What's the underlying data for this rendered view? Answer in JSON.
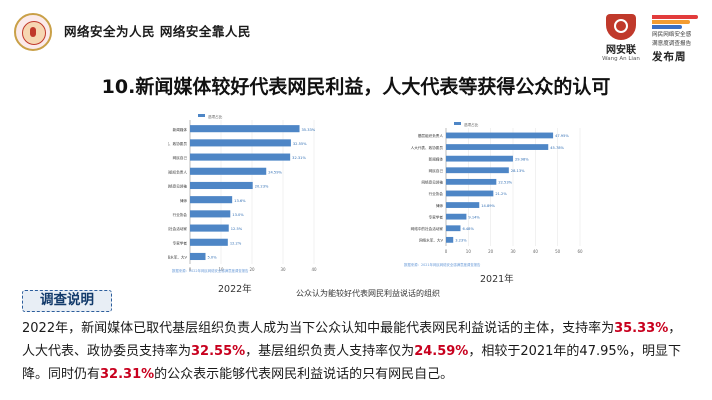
{
  "header": {
    "slogan": "网络安全为人民  网络安全靠人民",
    "brand": {
      "cn": "网安联",
      "en": "Wang An Lian"
    },
    "publisher": {
      "line1": "网民网络安全感",
      "line2": "满意度调查报告",
      "cn": "发布周"
    }
  },
  "title": "10.新闻媒体较好代表网民利益，人大代表等获得公众的认可",
  "chart_data": [
    {
      "type": "bar",
      "title": "2022年",
      "legend": "选项占比",
      "categories": [
        "新闻媒体",
        "人大代表、政协委员",
        "网民自己",
        "基层组织负责人",
        "网络意见领袖",
        "律师",
        "行业协会",
        "网络中的社会活动家",
        "专家学者",
        "网络水军、大V"
      ],
      "values": [
        35.33,
        32.55,
        32.31,
        24.59,
        20.23,
        13.6,
        13.0,
        12.5,
        12.2,
        5.0
      ],
      "labels": [
        "35.33%",
        "32.55%",
        "32.31%",
        "24.59%",
        "20.23%",
        "13.6%",
        "13.0%",
        "12.5%",
        "12.2%",
        "5.0%"
      ],
      "xlim": [
        0,
        40
      ],
      "xticks": [
        "0",
        "10",
        "20",
        "30",
        "40"
      ],
      "footnote": "数据来源：2022年网民网络安全感满意度调查报告",
      "color": "#4e86c6"
    },
    {
      "type": "bar",
      "title": "2021年",
      "legend": "选项占比",
      "categories": [
        "基层组织负责人",
        "人大代表、政协委员",
        "新闻媒体",
        "网民自己",
        "网络意见领袖",
        "行业协会",
        "律师",
        "专家学者",
        "网络中的社会活动家",
        "网络水军、大V"
      ],
      "values": [
        47.95,
        45.78,
        29.98,
        28.13,
        22.53,
        21.2,
        14.89,
        9.14,
        6.48,
        3.23
      ],
      "labels": [
        "47.95%",
        "45.78%",
        "29.98%",
        "28.13%",
        "22.53%",
        "21.2%",
        "14.89%",
        "9.14%",
        "6.48%",
        "3.23%"
      ],
      "xlim": [
        0,
        60
      ],
      "xticks": [
        "0",
        "10",
        "20",
        "30",
        "40",
        "50",
        "60"
      ],
      "footnote": "数据来源：2021年网民网络安全感满意度调查报告",
      "color": "#4e86c6"
    }
  ],
  "caption": "公众认为能较好代表网民利益说话的组织",
  "section_label": "调查说明",
  "body": {
    "p1": "2022年，新闻媒体已取代基层组织负责人成为当下公众认知中最能代表网民利益说话的主体，支持率为",
    "v1": "35.33%",
    "p2": "，人大代表、政协委员支持率为",
    "v2": "32.55%",
    "p3": "，基层组织负责人支持率仅为",
    "v3": "24.59%",
    "p4": "，相较于2021年的47.95%，明显下降。同时仍有",
    "v4": "32.31%",
    "p5": "的公众表示能够代表网民利益说话的只有网民自己。"
  },
  "colors": {
    "accent": "#c8001e",
    "bar": "#4e86c6",
    "section": "#123a6a"
  }
}
